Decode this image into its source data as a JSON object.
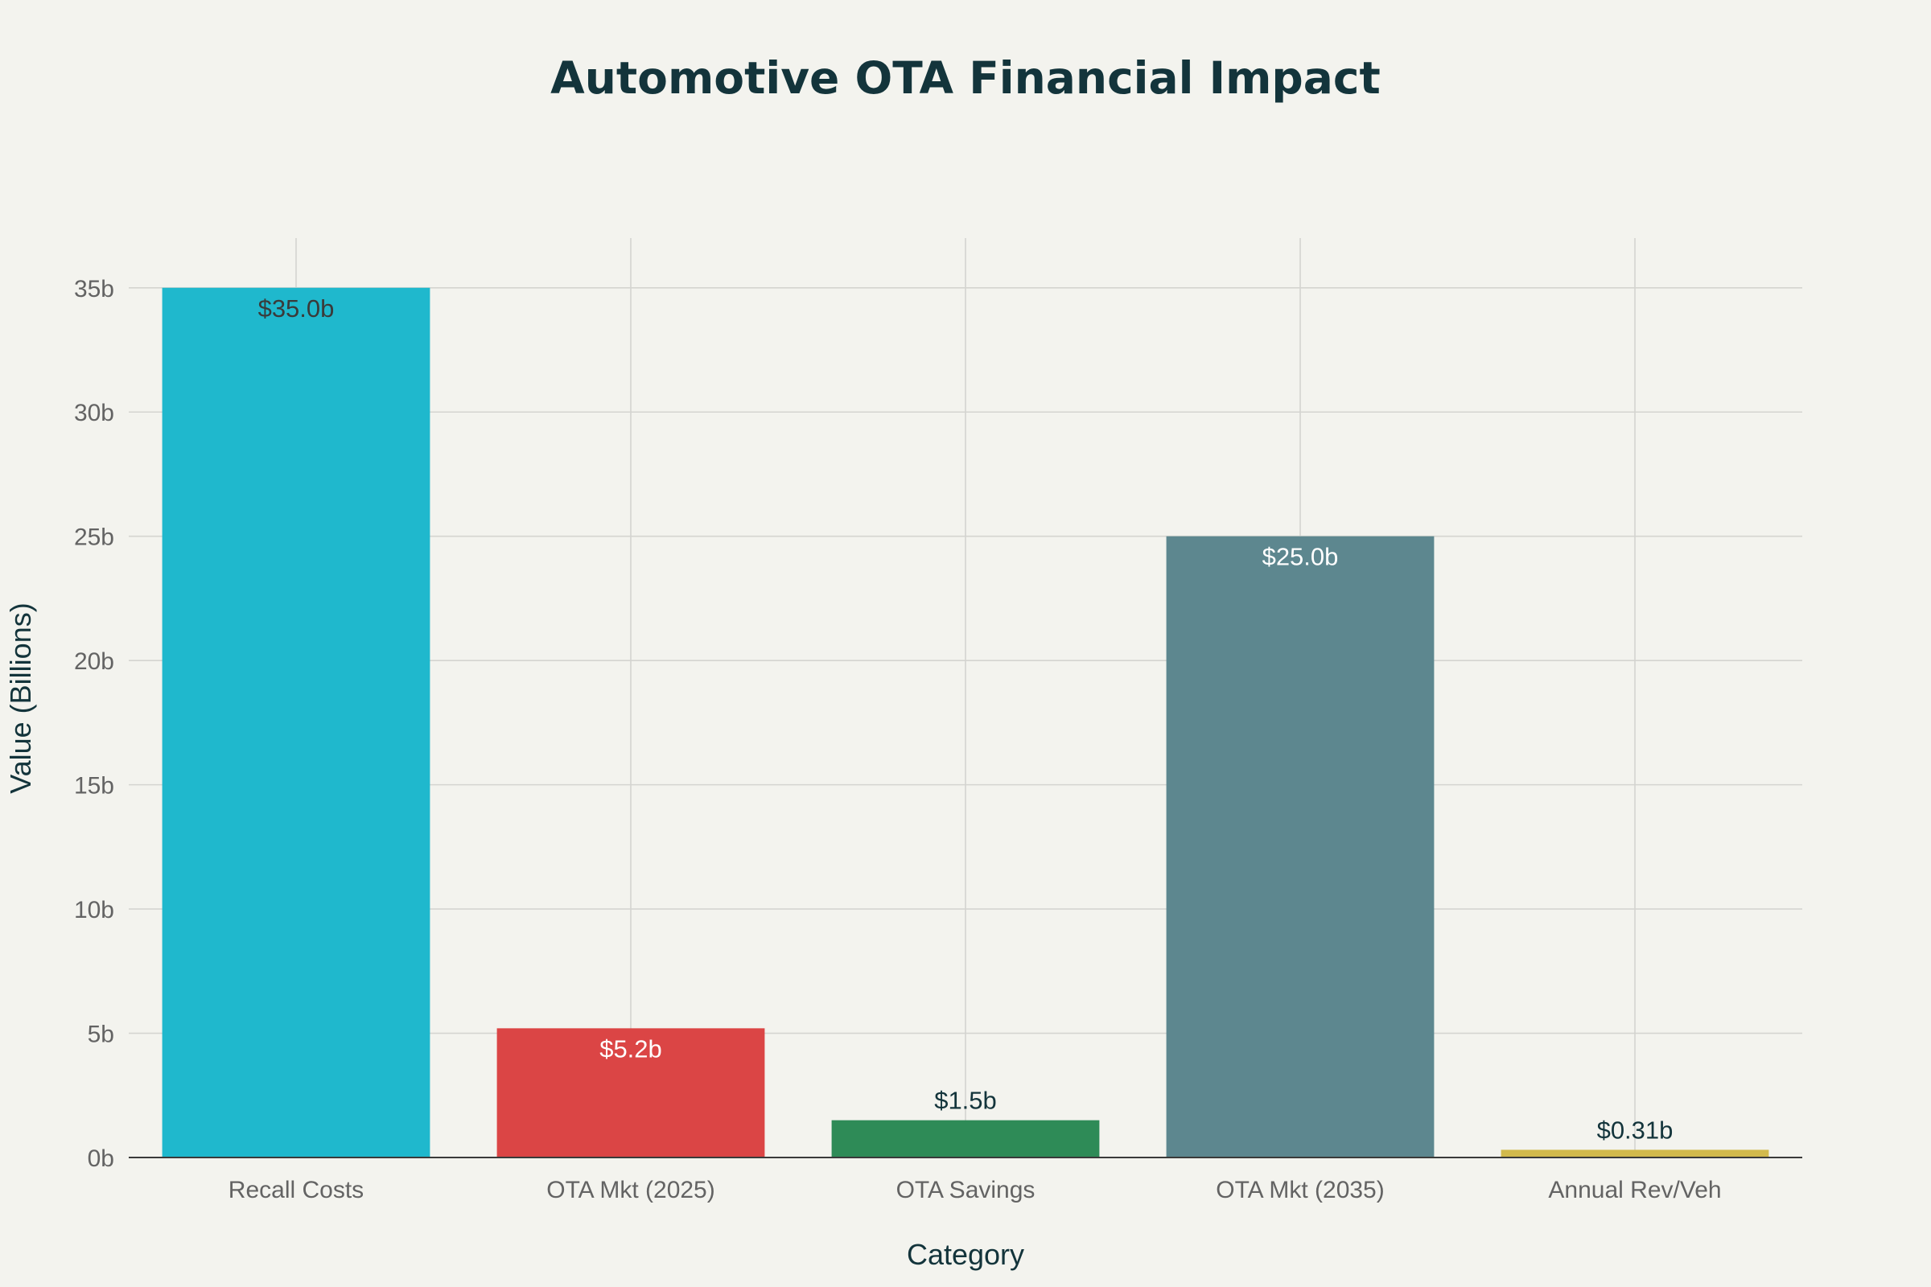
{
  "chart_data": {
    "type": "bar",
    "title": "Automotive OTA Financial Impact",
    "xlabel": "Category",
    "ylabel": "Value (Billions)",
    "ylim": [
      0,
      37
    ],
    "yticks": [
      0,
      5,
      10,
      15,
      20,
      25,
      30,
      35
    ],
    "ytick_labels": [
      "0b",
      "5b",
      "10b",
      "15b",
      "20b",
      "25b",
      "30b",
      "35b"
    ],
    "grid": true,
    "categories": [
      "Recall Costs",
      "OTA Mkt (2025)",
      "OTA Savings",
      "OTA Mkt (2035)",
      "Annual Rev/Veh"
    ],
    "values": [
      35.0,
      5.2,
      1.5,
      25.0,
      0.31
    ],
    "data_labels": [
      "$35.0b",
      "$5.2b",
      "$1.5b",
      "$25.0b",
      "$0.31b"
    ],
    "colors": [
      "#1FB8CD",
      "#DB4545",
      "#2E8B57",
      "#5D878F",
      "#D2BA4C"
    ],
    "label_colors": [
      "#3A3A3A",
      "#FFFFFF",
      "#13343B",
      "#FFFFFF",
      "#13343B"
    ]
  }
}
